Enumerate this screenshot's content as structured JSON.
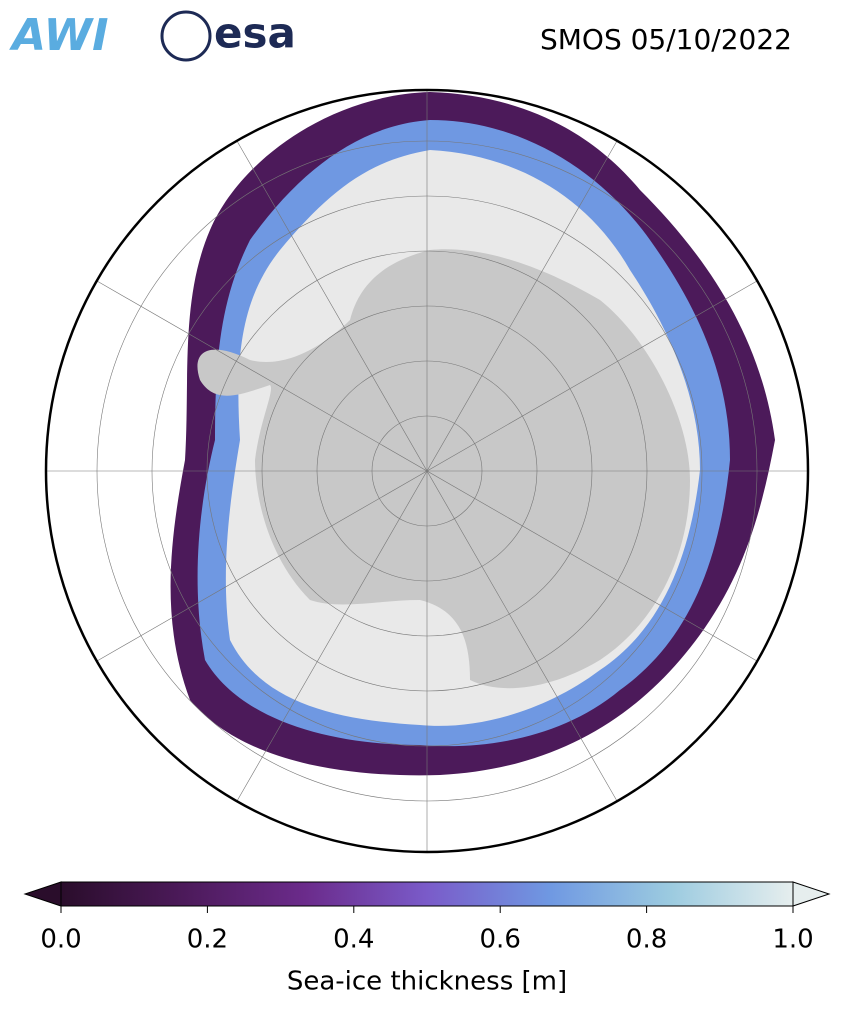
{
  "header": {
    "logos": [
      "AWI",
      "esa"
    ],
    "title": "SMOS 05/10/2022"
  },
  "colorbar": {
    "label": "Sea-ice thickness [m]",
    "lim": [
      0,
      1
    ],
    "ticks": [
      {
        "value": 0,
        "label": "0.0"
      },
      {
        "value": 0.2,
        "label": "0.2"
      },
      {
        "value": 0.4,
        "label": "0.4"
      },
      {
        "value": 0.6,
        "label": "0.6"
      },
      {
        "value": 0.8,
        "label": "0.8"
      },
      {
        "value": 1,
        "label": "1.0"
      }
    ],
    "colors": [
      "#2a0d2b",
      "#4c1a5a",
      "#6b2b8b",
      "#7a5bc9",
      "#6f98e2",
      "#9ccbe0",
      "#e6eeee"
    ]
  }
}
